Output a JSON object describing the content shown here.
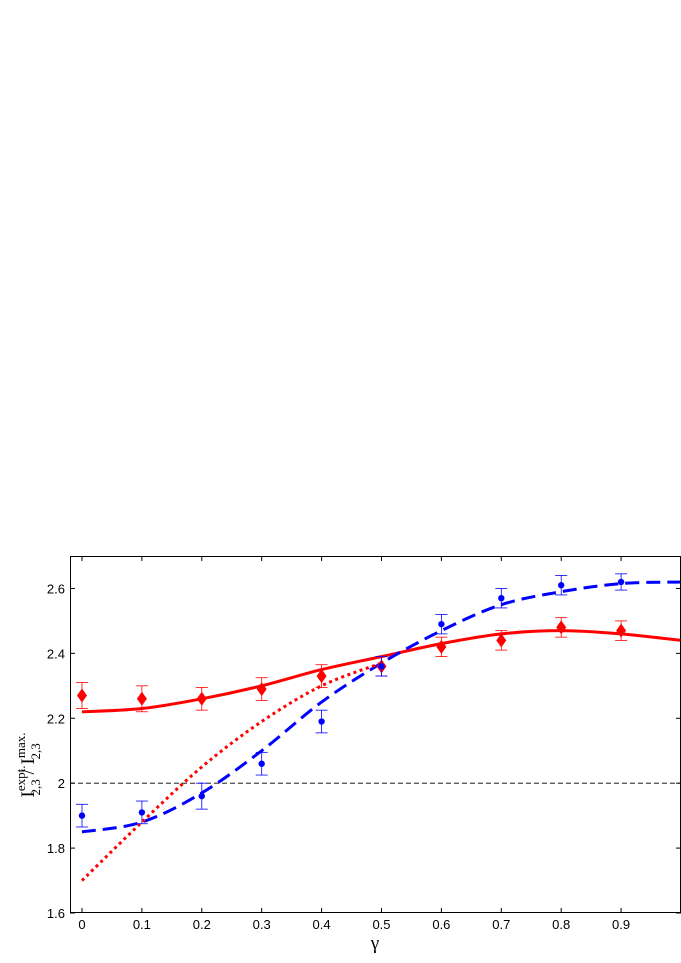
{
  "chart_data": {
    "type": "scatter",
    "title": "",
    "xlabel": "γ",
    "ylabel": {
      "base": "I",
      "sub": "2,3",
      "sup_left": "expt.",
      "separator": " / ",
      "sup_right": "max."
    },
    "xlim": [
      -0.02,
      1.0
    ],
    "ylim": [
      1.6,
      2.7
    ],
    "xticks": [
      0,
      0.1,
      0.2,
      0.3,
      0.4,
      0.5,
      0.6,
      0.7,
      0.8,
      0.9
    ],
    "xtick_labels": [
      "0",
      "0.1",
      "0.2",
      "0.3",
      "0.4",
      "0.5",
      "0.6",
      "0.7",
      "0.8",
      "0.9"
    ],
    "yticks": [
      1.6,
      1.8,
      2.0,
      2.2,
      2.4,
      2.6
    ],
    "ytick_labels": [
      "1.6",
      "1.8",
      "2",
      "2.2",
      "2.4",
      "2.6"
    ],
    "grid": false,
    "reference_line": {
      "y": 2.0,
      "style": "dashed",
      "color": "#000000"
    },
    "series": [
      {
        "kind": "points",
        "marker": "diamond",
        "color": "#ff0000",
        "x": [
          0,
          0.1,
          0.2,
          0.3,
          0.4,
          0.5,
          0.6,
          0.7,
          0.8,
          0.9
        ],
        "y": [
          2.27,
          2.26,
          2.26,
          2.29,
          2.33,
          2.36,
          2.42,
          2.44,
          2.48,
          2.47
        ],
        "err": [
          0.04,
          0.04,
          0.035,
          0.035,
          0.035,
          0.03,
          0.03,
          0.03,
          0.03,
          0.03
        ]
      },
      {
        "kind": "points",
        "marker": "dot",
        "color": "#0000ff",
        "x": [
          0,
          0.1,
          0.2,
          0.3,
          0.4,
          0.5,
          0.6,
          0.7,
          0.8,
          0.9
        ],
        "y": [
          1.9,
          1.91,
          1.96,
          2.06,
          2.19,
          2.36,
          2.49,
          2.57,
          2.61,
          2.62
        ],
        "err": [
          0.035,
          0.035,
          0.04,
          0.035,
          0.035,
          0.03,
          0.03,
          0.03,
          0.03,
          0.025
        ]
      },
      {
        "kind": "curve",
        "style": "solid",
        "color": "#ff0000",
        "x": [
          0,
          0.1,
          0.2,
          0.3,
          0.4,
          0.5,
          0.6,
          0.7,
          0.8,
          0.9,
          1.0
        ],
        "y": [
          2.22,
          2.23,
          2.26,
          2.3,
          2.35,
          2.39,
          2.43,
          2.46,
          2.47,
          2.46,
          2.44
        ]
      },
      {
        "kind": "curve",
        "style": "dashed",
        "color": "#0000ff",
        "x": [
          0,
          0.1,
          0.2,
          0.3,
          0.4,
          0.5,
          0.6,
          0.7,
          0.8,
          0.9,
          1.0
        ],
        "y": [
          1.85,
          1.88,
          1.97,
          2.1,
          2.25,
          2.37,
          2.47,
          2.55,
          2.59,
          2.615,
          2.62
        ]
      },
      {
        "kind": "curve",
        "style": "dotted",
        "color": "#ff0000",
        "x": [
          0,
          0.1,
          0.2,
          0.3,
          0.4,
          0.5
        ],
        "y": [
          1.7,
          1.88,
          2.05,
          2.19,
          2.3,
          2.37
        ]
      }
    ]
  }
}
